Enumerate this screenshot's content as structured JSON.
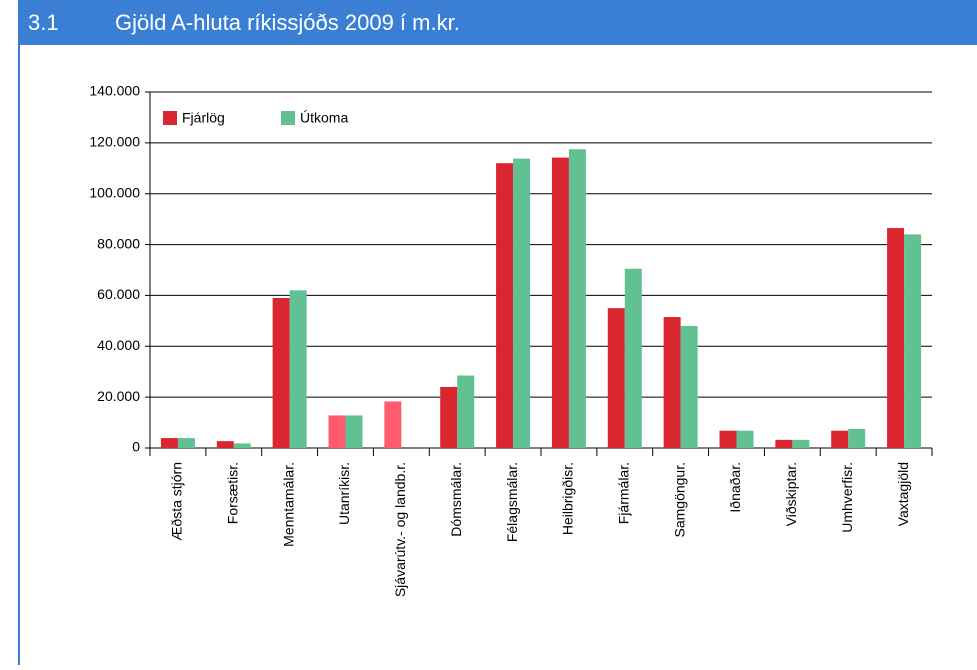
{
  "header": {
    "number": "3.1",
    "title": "Gjöld A-hluta ríkissjóðs 2009 í m.kr."
  },
  "chart_data": {
    "type": "bar",
    "categories": [
      "Æðsta stjórn",
      "Forsætisr.",
      "Menntamálar.",
      "Utanríkisr.",
      "Sjávarútv.- og landb.r.",
      "Dómsmálar.",
      "Félagsmálar.",
      "Heilbrigðisr.",
      "Fjármálar.",
      "Samgöngur.",
      "Iðnaðar.",
      "Viðskiptar.",
      "Umhverfisr.",
      "Vaxtagjöld"
    ],
    "series": [
      {
        "name": "Fjárlög",
        "color": "#d92631",
        "point_colors": [
          "#d92631",
          "#d92631",
          "#d92631",
          "#ff5a6e",
          "#ff5a6e",
          "#d92631",
          "#d92631",
          "#d92631",
          "#d92631",
          "#d92631",
          "#d92631",
          "#d92631",
          "#d92631",
          "#d92631"
        ],
        "values": [
          3900,
          2700,
          59000,
          12800,
          18300,
          24000,
          112000,
          114200,
          55000,
          51500,
          6800,
          3200,
          6800,
          86500
        ]
      },
      {
        "name": "Útkoma",
        "color": "#62c193",
        "values": [
          3900,
          1800,
          62000,
          12800,
          null,
          28500,
          113800,
          117500,
          70500,
          48000,
          6800,
          3200,
          7500,
          84000
        ]
      }
    ],
    "ylim": [
      0,
      140000
    ],
    "yticks": [
      0,
      {
        "value": 20000,
        "label": "20.000"
      },
      {
        "value": 40000,
        "label": "40.000"
      },
      {
        "value": 60000,
        "label": "60.000"
      },
      {
        "value": 80000,
        "label": "80.000"
      },
      {
        "value": 100000,
        "label": "100.000"
      },
      {
        "value": 120000,
        "label": "120.000"
      },
      {
        "value": 140000,
        "label": "140.000"
      }
    ],
    "grid": true,
    "legend": "upper left"
  }
}
